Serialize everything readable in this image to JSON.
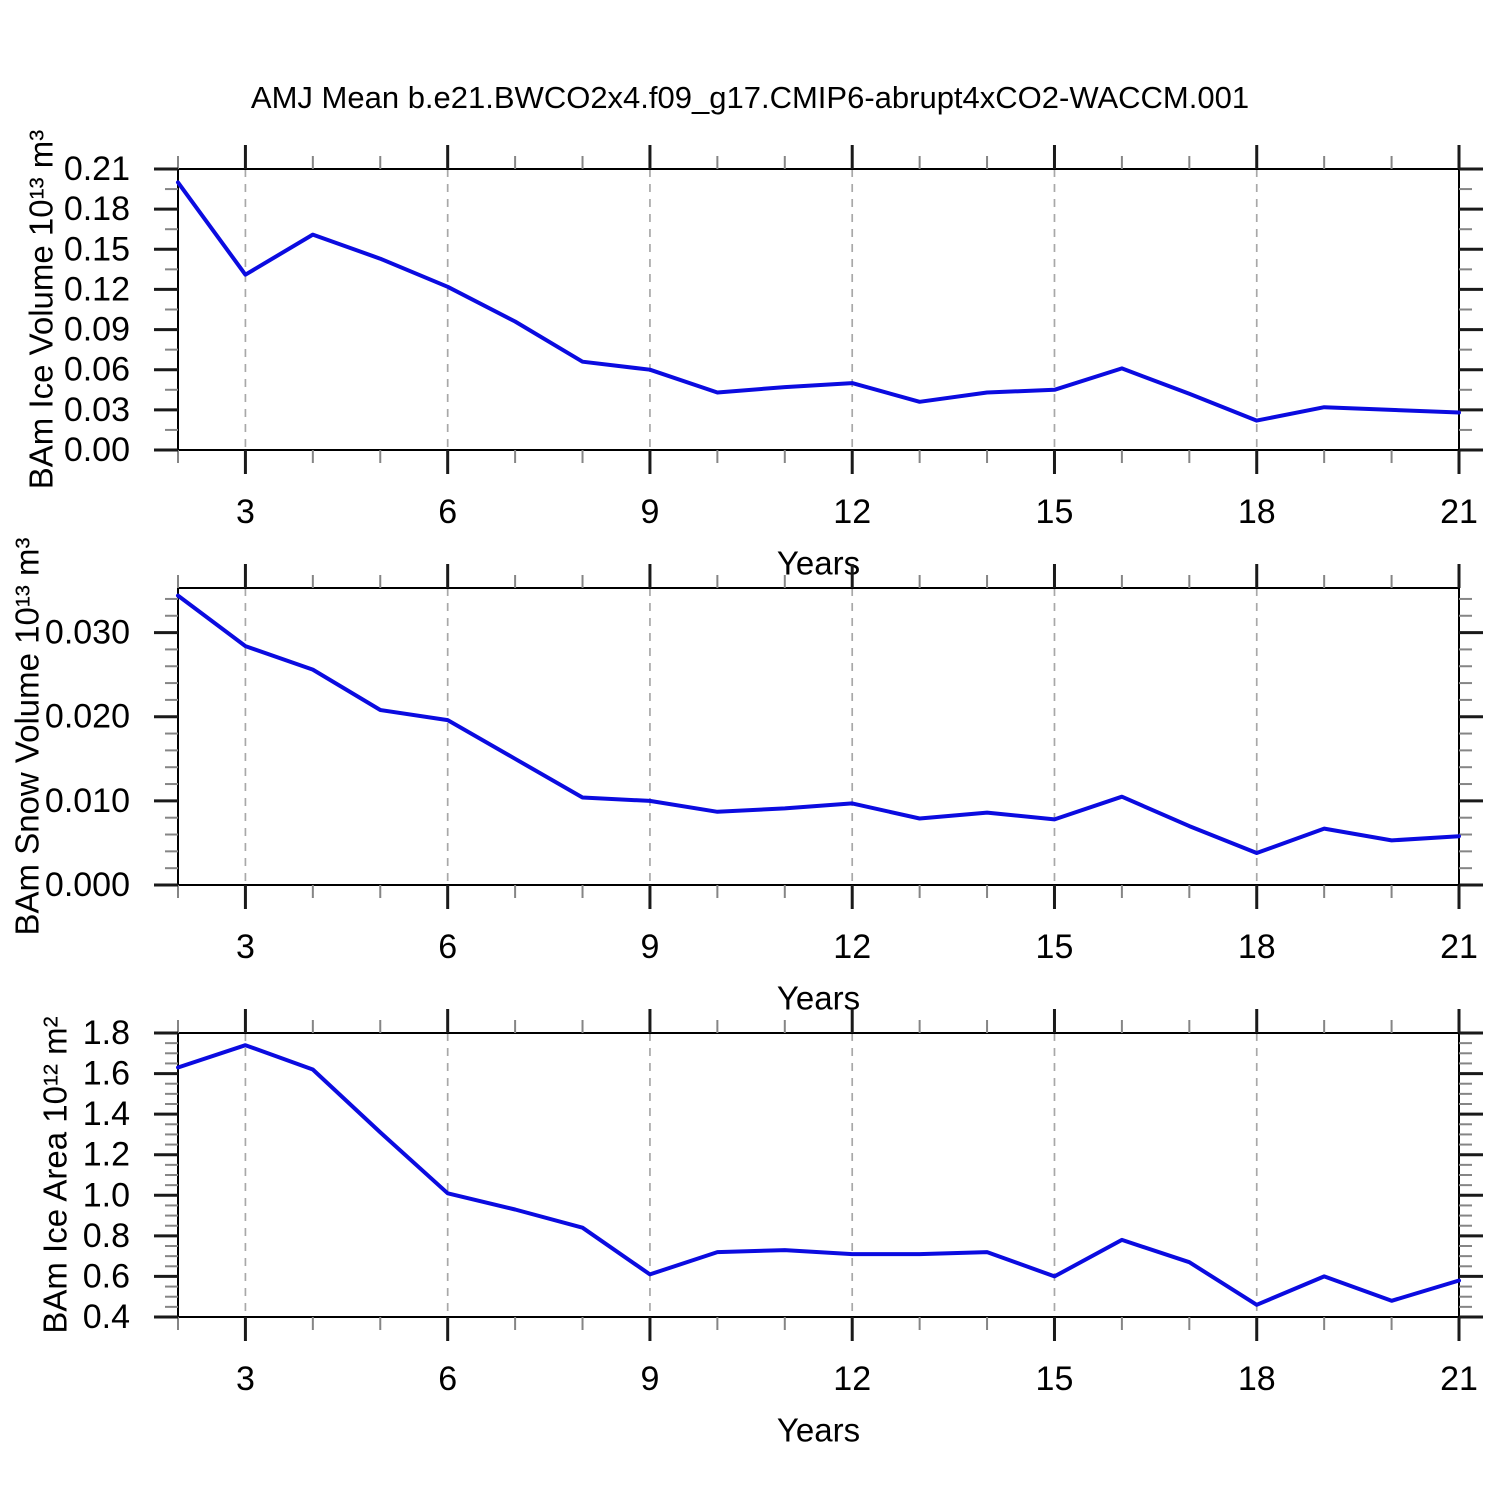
{
  "title": "AMJ Mean b.e21.BWCO2x4.f09_g17.CMIP6-abrupt4xCO2-WACCM.001",
  "colors": {
    "line": "#0b0be0",
    "axis": "#000000",
    "major_tick": "#1a1a1a",
    "minor_tick": "#858585",
    "grid": "#a8a8a8",
    "background": "#ffffff"
  },
  "x_axis": {
    "label": "Years",
    "min": 2,
    "max": 21,
    "major_ticks": [
      3,
      6,
      9,
      12,
      15,
      18,
      21
    ],
    "minor_step": 1,
    "gridline_ticks": [
      3,
      6,
      9,
      12,
      15,
      18
    ]
  },
  "chart_data": [
    {
      "type": "line",
      "name": "bam-ice-volume",
      "title": "",
      "ylabel": "BAm Ice Volume 10¹³ m³",
      "xlabel": "Years",
      "ylim": [
        0,
        0.21
      ],
      "ytick_step": 0.03,
      "yminor_step": 0.015,
      "ytick_decimals": 2,
      "grid": "x-dashed",
      "legend": "none",
      "x": [
        2,
        3,
        4,
        5,
        6,
        7,
        8,
        9,
        10,
        11,
        12,
        13,
        14,
        15,
        16,
        17,
        18,
        19,
        20,
        21
      ],
      "values": [
        0.2,
        0.131,
        0.161,
        0.143,
        0.122,
        0.096,
        0.066,
        0.06,
        0.043,
        0.047,
        0.05,
        0.036,
        0.043,
        0.045,
        0.061,
        0.042,
        0.022,
        0.032,
        0.03,
        0.028
      ]
    },
    {
      "type": "line",
      "name": "bam-snow-volume",
      "title": "",
      "ylabel": "BAm Snow Volume 10¹³ m³",
      "xlabel": "Years",
      "ylim": [
        0,
        0.0353
      ],
      "ytick_step": 0.01,
      "yminor_step": 0.002,
      "ytick_decimals": 3,
      "grid": "x-dashed",
      "legend": "none",
      "x": [
        2,
        3,
        4,
        5,
        6,
        7,
        8,
        9,
        10,
        11,
        12,
        13,
        14,
        15,
        16,
        17,
        18,
        19,
        20,
        21
      ],
      "values": [
        0.0344,
        0.0284,
        0.0256,
        0.0208,
        0.0196,
        0.015,
        0.0104,
        0.01,
        0.0087,
        0.0091,
        0.0097,
        0.0079,
        0.0086,
        0.0078,
        0.0105,
        0.007,
        0.0038,
        0.0067,
        0.0053,
        0.0058
      ]
    },
    {
      "type": "line",
      "name": "bam-ice-area",
      "title": "",
      "ylabel": "BAm Ice Area 10¹² m²",
      "xlabel": "Years",
      "ylim": [
        0.4,
        1.8
      ],
      "ytick_step": 0.2,
      "yminor_step": 0.05,
      "ytick_decimals": 1,
      "grid": "x-dashed",
      "legend": "none",
      "x": [
        2,
        3,
        4,
        5,
        6,
        7,
        8,
        9,
        10,
        11,
        12,
        13,
        14,
        15,
        16,
        17,
        18,
        19,
        20,
        21
      ],
      "values": [
        1.63,
        1.74,
        1.62,
        1.31,
        1.01,
        0.93,
        0.84,
        0.61,
        0.72,
        0.73,
        0.71,
        0.71,
        0.72,
        0.6,
        0.78,
        0.67,
        0.46,
        0.6,
        0.48,
        0.58
      ]
    }
  ]
}
